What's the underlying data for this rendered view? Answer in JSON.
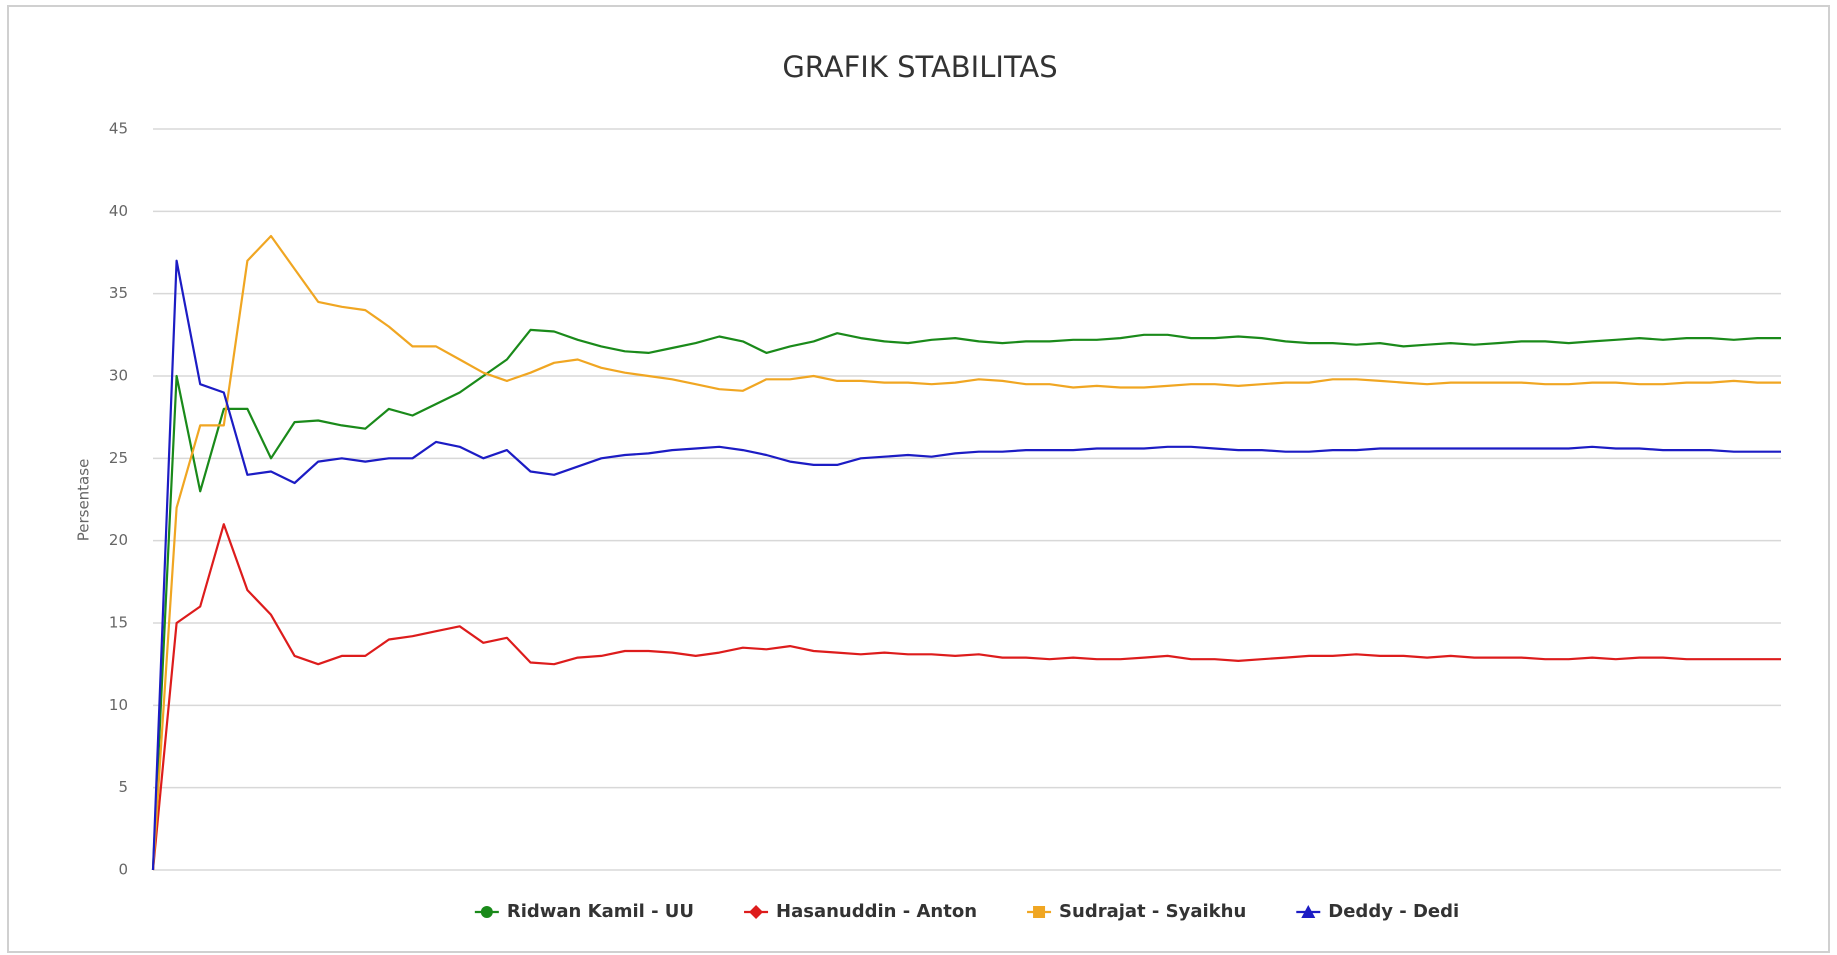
{
  "chart_data": {
    "type": "line",
    "title": "GRAFIK STABILITAS",
    "y_label": "Persentase",
    "categories": [
      null,
      null,
      null,
      null,
      null,
      null,
      null,
      null,
      null,
      null,
      null,
      null,
      null,
      null,
      null,
      null,
      null,
      null,
      null,
      null,
      null,
      null,
      null,
      null,
      null,
      null,
      null,
      null,
      null,
      null,
      null,
      null,
      null,
      null,
      null,
      null,
      null,
      null,
      null,
      null,
      null,
      null,
      null,
      null,
      null,
      null,
      null,
      null,
      null,
      null,
      null,
      null,
      null,
      null,
      null,
      null,
      null,
      null,
      null,
      null,
      null,
      null,
      null,
      null,
      null,
      null,
      null,
      null,
      null,
      null
    ],
    "series": [
      {
        "name": "Ridwan Kamil - UU",
        "color": "#1a8a1a",
        "marker": "circle",
        "values": [
          0,
          30,
          23,
          28,
          28,
          25,
          27.2,
          27.3,
          27,
          26.8,
          28,
          27.6,
          28.3,
          29,
          30,
          31,
          32.8,
          32.7,
          32.2,
          31.8,
          31.5,
          31.4,
          31.7,
          32,
          32.4,
          32.1,
          31.4,
          31.8,
          32.1,
          32.6,
          32.3,
          32.1,
          32,
          32.2,
          32.3,
          32.1,
          32,
          32.1,
          32.1,
          32.2,
          32.2,
          32.3,
          32.5,
          32.5,
          32.3,
          32.3,
          32.4,
          32.3,
          32.1,
          32,
          32,
          31.9,
          32,
          31.8,
          31.9,
          32,
          31.9,
          32,
          32.1,
          32.1,
          32,
          32.1,
          32.2,
          32.3,
          32.2,
          32.3,
          32.3,
          32.2,
          32.3,
          32.3
        ]
      },
      {
        "name": "Hasanuddin - Anton",
        "color": "#dd1c1c",
        "marker": "diamond",
        "values": [
          0,
          15,
          16,
          21,
          17,
          15.5,
          13,
          12.5,
          13,
          13,
          14,
          14.2,
          14.5,
          14.8,
          13.8,
          14.1,
          12.6,
          12.5,
          12.9,
          13,
          13.3,
          13.3,
          13.2,
          13,
          13.2,
          13.5,
          13.4,
          13.6,
          13.3,
          13.2,
          13.1,
          13.2,
          13.1,
          13.1,
          13,
          13.1,
          12.9,
          12.9,
          12.8,
          12.9,
          12.8,
          12.8,
          12.9,
          13,
          12.8,
          12.8,
          12.7,
          12.8,
          12.9,
          13,
          13,
          13.1,
          13,
          13,
          12.9,
          13,
          12.9,
          12.9,
          12.9,
          12.8,
          12.8,
          12.9,
          12.8,
          12.9,
          12.9,
          12.8,
          12.8,
          12.8,
          12.8,
          12.8
        ]
      },
      {
        "name": "Sudrajat - Syaikhu",
        "color": "#f0a622",
        "marker": "square",
        "values": [
          0,
          22,
          27,
          27,
          37,
          38.5,
          36.5,
          34.5,
          34.2,
          34,
          33,
          31.8,
          31.8,
          31,
          30.2,
          29.7,
          30.2,
          30.8,
          31,
          30.5,
          30.2,
          30,
          29.8,
          29.5,
          29.2,
          29.1,
          29.8,
          29.8,
          30,
          29.7,
          29.7,
          29.6,
          29.6,
          29.5,
          29.6,
          29.8,
          29.7,
          29.5,
          29.5,
          29.3,
          29.4,
          29.3,
          29.3,
          29.4,
          29.5,
          29.5,
          29.4,
          29.5,
          29.6,
          29.6,
          29.8,
          29.8,
          29.7,
          29.6,
          29.5,
          29.6,
          29.6,
          29.6,
          29.6,
          29.5,
          29.5,
          29.6,
          29.6,
          29.5,
          29.5,
          29.6,
          29.6,
          29.7,
          29.6,
          29.6
        ]
      },
      {
        "name": "Deddy - Dedi",
        "color": "#1c1cc4",
        "marker": "triangle",
        "values": [
          0,
          37,
          29.5,
          29,
          24,
          24.2,
          23.5,
          24.8,
          25,
          24.8,
          25,
          25,
          26,
          25.7,
          25,
          25.5,
          24.2,
          24,
          24.5,
          25,
          25.2,
          25.3,
          25.5,
          25.6,
          25.7,
          25.5,
          25.2,
          24.8,
          24.6,
          24.6,
          25,
          25.1,
          25.2,
          25.1,
          25.3,
          25.4,
          25.4,
          25.5,
          25.5,
          25.5,
          25.6,
          25.6,
          25.6,
          25.7,
          25.7,
          25.6,
          25.5,
          25.5,
          25.4,
          25.4,
          25.5,
          25.5,
          25.6,
          25.6,
          25.6,
          25.6,
          25.6,
          25.6,
          25.6,
          25.6,
          25.6,
          25.7,
          25.6,
          25.6,
          25.5,
          25.5,
          25.5,
          25.4,
          25.4,
          25.4
        ]
      }
    ],
    "ylim": [
      0,
      45
    ],
    "yticks": [
      0,
      5,
      10,
      15,
      20,
      25,
      30,
      35,
      40,
      45
    ],
    "grid": true,
    "legend": "bottom"
  }
}
